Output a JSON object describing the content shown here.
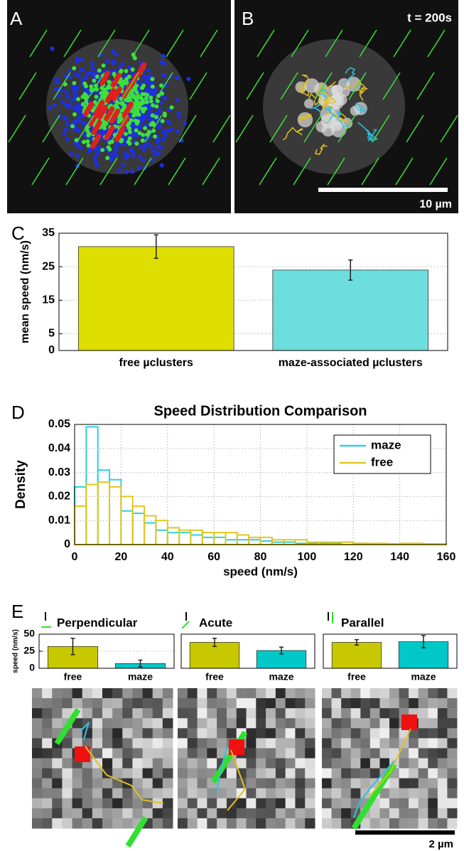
{
  "panel_labels": [
    "A",
    "B",
    "C",
    "D",
    "E"
  ],
  "panel_b": {
    "time": "t = 200s",
    "scale_bar": "10 µm"
  },
  "scale_bar_e": "2 µm",
  "chart_data": [
    {
      "type": "bar",
      "ylabel": "mean speed (nm/s)",
      "categories": [
        "free µclusters",
        "maze-associated µclusters"
      ],
      "values": [
        31,
        24
      ],
      "errors": [
        3.5,
        3
      ],
      "colors": [
        "#dede00",
        "#6ddede"
      ],
      "ylim": [
        0,
        35
      ],
      "yticks": [
        0,
        5,
        15,
        25,
        35
      ],
      "grid": true
    },
    {
      "type": "histogram",
      "title": "Speed Distribution Comparison",
      "xlabel": "speed (nm/s)",
      "ylabel": "Density",
      "bins": [
        0,
        5,
        10,
        15,
        20,
        25,
        30,
        35,
        40,
        45,
        50,
        55,
        60,
        65,
        70,
        75,
        80,
        85,
        90,
        95,
        100,
        105,
        110,
        115,
        120,
        125,
        130,
        135,
        140,
        145,
        150,
        155,
        160
      ],
      "series": [
        {
          "name": "maze",
          "color": "#2fd0e0",
          "values": [
            0.024,
            0.049,
            0.031,
            0.027,
            0.014,
            0.013,
            0.009,
            0.006,
            0.005,
            0.005,
            0.004,
            0.003,
            0.003,
            0.002,
            0.002,
            0.002,
            0.0015,
            0.001,
            0.001,
            0.0005,
            0.0005,
            0.0005,
            0.0005,
            0.001,
            0.0005,
            0.0003,
            0.0003,
            0.0003,
            0.0003,
            0.0003,
            0.0003,
            0.0003
          ]
        },
        {
          "name": "free",
          "color": "#e0c820",
          "values": [
            0.016,
            0.025,
            0.026,
            0.024,
            0.02,
            0.016,
            0.012,
            0.01,
            0.007,
            0.006,
            0.006,
            0.005,
            0.005,
            0.005,
            0.004,
            0.003,
            0.003,
            0.002,
            0.002,
            0.002,
            0.001,
            0.001,
            0.001,
            0.001,
            0.0005,
            0.0005,
            0.0005,
            0.0003,
            0.0005,
            0.0005,
            0.0003,
            0.0003
          ]
        }
      ],
      "xlim": [
        0,
        160
      ],
      "xticks": [
        0,
        20,
        40,
        60,
        80,
        100,
        120,
        140,
        160
      ],
      "ylim": [
        0,
        0.05
      ],
      "yticks": [
        0,
        0.01,
        0.02,
        0.03,
        0.04,
        0.05
      ],
      "grid": true,
      "legend": "upper right"
    },
    {
      "type": "bar",
      "title": "Perpendicular",
      "ylabel": "speed (nm/s)",
      "categories": [
        "free",
        "maze"
      ],
      "values": [
        32,
        7
      ],
      "errors": [
        12,
        5
      ],
      "colors": [
        "#c8c800",
        "#00c8c8"
      ],
      "ylim": [
        0,
        50
      ],
      "yticks": [
        0,
        25,
        50
      ],
      "grid": true
    },
    {
      "type": "bar",
      "title": "Acute",
      "categories": [
        "free",
        "maze"
      ],
      "values": [
        38,
        26
      ],
      "errors": [
        6,
        5
      ],
      "colors": [
        "#c8c800",
        "#00c8c8"
      ],
      "ylim": [
        0,
        50
      ]
    },
    {
      "type": "bar",
      "title": "Parallel",
      "categories": [
        "free",
        "maze"
      ],
      "values": [
        38,
        39
      ],
      "errors": [
        4,
        9
      ],
      "colors": [
        "#c8c800",
        "#00c8c8"
      ],
      "ylim": [
        0,
        50
      ]
    }
  ]
}
